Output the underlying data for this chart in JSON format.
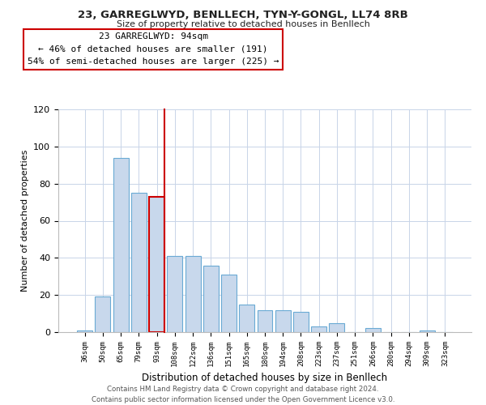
{
  "title": "23, GARREGLWYD, BENLLECH, TYN-Y-GONGL, LL74 8RB",
  "subtitle": "Size of property relative to detached houses in Benllech",
  "xlabel": "Distribution of detached houses by size in Benllech",
  "ylabel": "Number of detached properties",
  "bins": [
    "36sqm",
    "50sqm",
    "65sqm",
    "79sqm",
    "93sqm",
    "108sqm",
    "122sqm",
    "136sqm",
    "151sqm",
    "165sqm",
    "180sqm",
    "194sqm",
    "208sqm",
    "223sqm",
    "237sqm",
    "251sqm",
    "266sqm",
    "280sqm",
    "294sqm",
    "309sqm",
    "323sqm"
  ],
  "values": [
    1,
    19,
    94,
    75,
    73,
    41,
    41,
    36,
    31,
    15,
    12,
    12,
    11,
    3,
    5,
    0,
    2,
    0,
    0,
    1,
    0
  ],
  "bar_color": "#c8d8ec",
  "bar_edge_color": "#6aaad4",
  "highlight_bar_index": 4,
  "highlight_edge_color": "#cc0000",
  "annotation_title": "23 GARREGLWYD: 94sqm",
  "annotation_line1": "← 46% of detached houses are smaller (191)",
  "annotation_line2": "54% of semi-detached houses are larger (225) →",
  "annotation_box_color": "#ffffff",
  "annotation_box_edge": "#cc0000",
  "ylim": [
    0,
    120
  ],
  "yticks": [
    0,
    20,
    40,
    60,
    80,
    100,
    120
  ],
  "footer_line1": "Contains HM Land Registry data © Crown copyright and database right 2024.",
  "footer_line2": "Contains public sector information licensed under the Open Government Licence v3.0.",
  "bg_color": "#ffffff",
  "grid_color": "#c8d4e8"
}
